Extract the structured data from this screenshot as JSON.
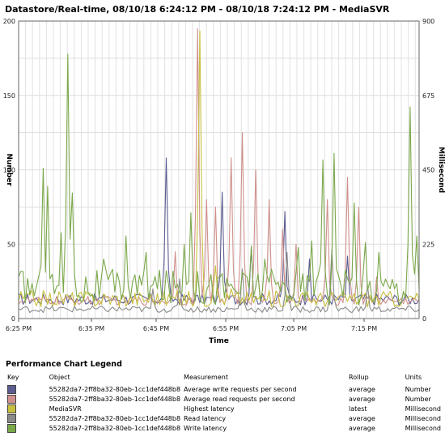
{
  "title": "Datastore/Real-time, 08/10/18 6:24:12 PM - 08/10/18 7:24:12 PM - MediaSVR",
  "chart_data": {
    "type": "line",
    "xlabel": "Time",
    "ylabel_left": "Number",
    "ylabel_right": "Millisecond",
    "ylim_left": [
      0,
      200
    ],
    "ylim_right": [
      0,
      900
    ],
    "yticks_left": [
      "0",
      "50",
      "100",
      "150",
      "200"
    ],
    "yticks_right": [
      "0",
      "225",
      "450",
      "675",
      "900"
    ],
    "xticks": [
      "6:25 PM",
      "6:35 PM",
      "6:45 PM",
      "6:55 PM",
      "7:05 PM",
      "7:15 PM"
    ],
    "grid": true,
    "samples": 180,
    "series": [
      {
        "name": "Average write requests per second",
        "color": "#5c5c90",
        "axis": "left",
        "baseline": 13,
        "noise": 4,
        "spikes": [
          [
            66,
            108
          ],
          [
            91,
            85
          ],
          [
            104,
            48
          ],
          [
            119,
            72
          ],
          [
            130,
            40
          ],
          [
            147,
            42
          ]
        ]
      },
      {
        "name": "Average read requests per second",
        "color": "#d0908c",
        "axis": "left",
        "baseline": 12,
        "noise": 3,
        "spikes": [
          [
            70,
            45
          ],
          [
            80,
            195
          ],
          [
            84,
            80
          ],
          [
            88,
            75
          ],
          [
            95,
            108
          ],
          [
            100,
            125
          ],
          [
            106,
            100
          ],
          [
            112,
            80
          ],
          [
            118,
            60
          ],
          [
            124,
            50
          ],
          [
            138,
            80
          ],
          [
            147,
            95
          ],
          [
            152,
            75
          ],
          [
            160,
            28
          ]
        ]
      },
      {
        "name": "Highest latency",
        "color": "#c8c040",
        "axis": "right",
        "baseline": 60,
        "noise": 25,
        "spikes": [
          [
            81,
            870
          ],
          [
            88,
            160
          ],
          [
            95,
            90
          ]
        ]
      },
      {
        "name": "Read latency",
        "color": "#8a8a8a",
        "axis": "right",
        "baseline": 28,
        "noise": 10,
        "spikes": [
          [
            60,
            90
          ],
          [
            72,
            120
          ],
          [
            100,
            150
          ],
          [
            120,
            200
          ],
          [
            140,
            210
          ],
          [
            156,
            100
          ]
        ]
      },
      {
        "name": "Write latency",
        "color": "#7ba84a",
        "axis": "right",
        "baseline": 95,
        "noise": 55,
        "spikes": [
          [
            11,
            455
          ],
          [
            13,
            400
          ],
          [
            19,
            260
          ],
          [
            22,
            800
          ],
          [
            24,
            380
          ],
          [
            38,
            180
          ],
          [
            48,
            250
          ],
          [
            57,
            200
          ],
          [
            74,
            225
          ],
          [
            77,
            320
          ],
          [
            104,
            220
          ],
          [
            110,
            180
          ],
          [
            125,
            215
          ],
          [
            131,
            235
          ],
          [
            136,
            480
          ],
          [
            141,
            500
          ],
          [
            150,
            350
          ],
          [
            155,
            230
          ],
          [
            161,
            200
          ],
          [
            168,
            90
          ],
          [
            175,
            640
          ],
          [
            178,
            250
          ]
        ]
      }
    ]
  },
  "legend": {
    "title": "Performance Chart Legend",
    "headers": {
      "key": "Key",
      "object": "Object",
      "measurement": "Measurement",
      "rollup": "Rollup",
      "units": "Units"
    },
    "rows": [
      {
        "color": "#5c5c90",
        "object": "55282da7-2ff8ba32-80eb-1cc1def448b8",
        "measurement": "Average write requests per second",
        "rollup": "average",
        "units": "Number"
      },
      {
        "color": "#d0908c",
        "object": "55282da7-2ff8ba32-80eb-1cc1def448b8",
        "measurement": "Average read requests per second",
        "rollup": "average",
        "units": "Number"
      },
      {
        "color": "#c8c040",
        "object": "MediaSVR",
        "measurement": "Highest latency",
        "rollup": "latest",
        "units": "Millisecond"
      },
      {
        "color": "#8a8a8a",
        "object": "55282da7-2ff8ba32-80eb-1cc1def448b8",
        "measurement": "Read latency",
        "rollup": "average",
        "units": "Millisecond"
      },
      {
        "color": "#7ba84a",
        "object": "55282da7-2ff8ba32-80eb-1cc1def448b8",
        "measurement": "Write latency",
        "rollup": "average",
        "units": "Millisecond"
      }
    ]
  }
}
